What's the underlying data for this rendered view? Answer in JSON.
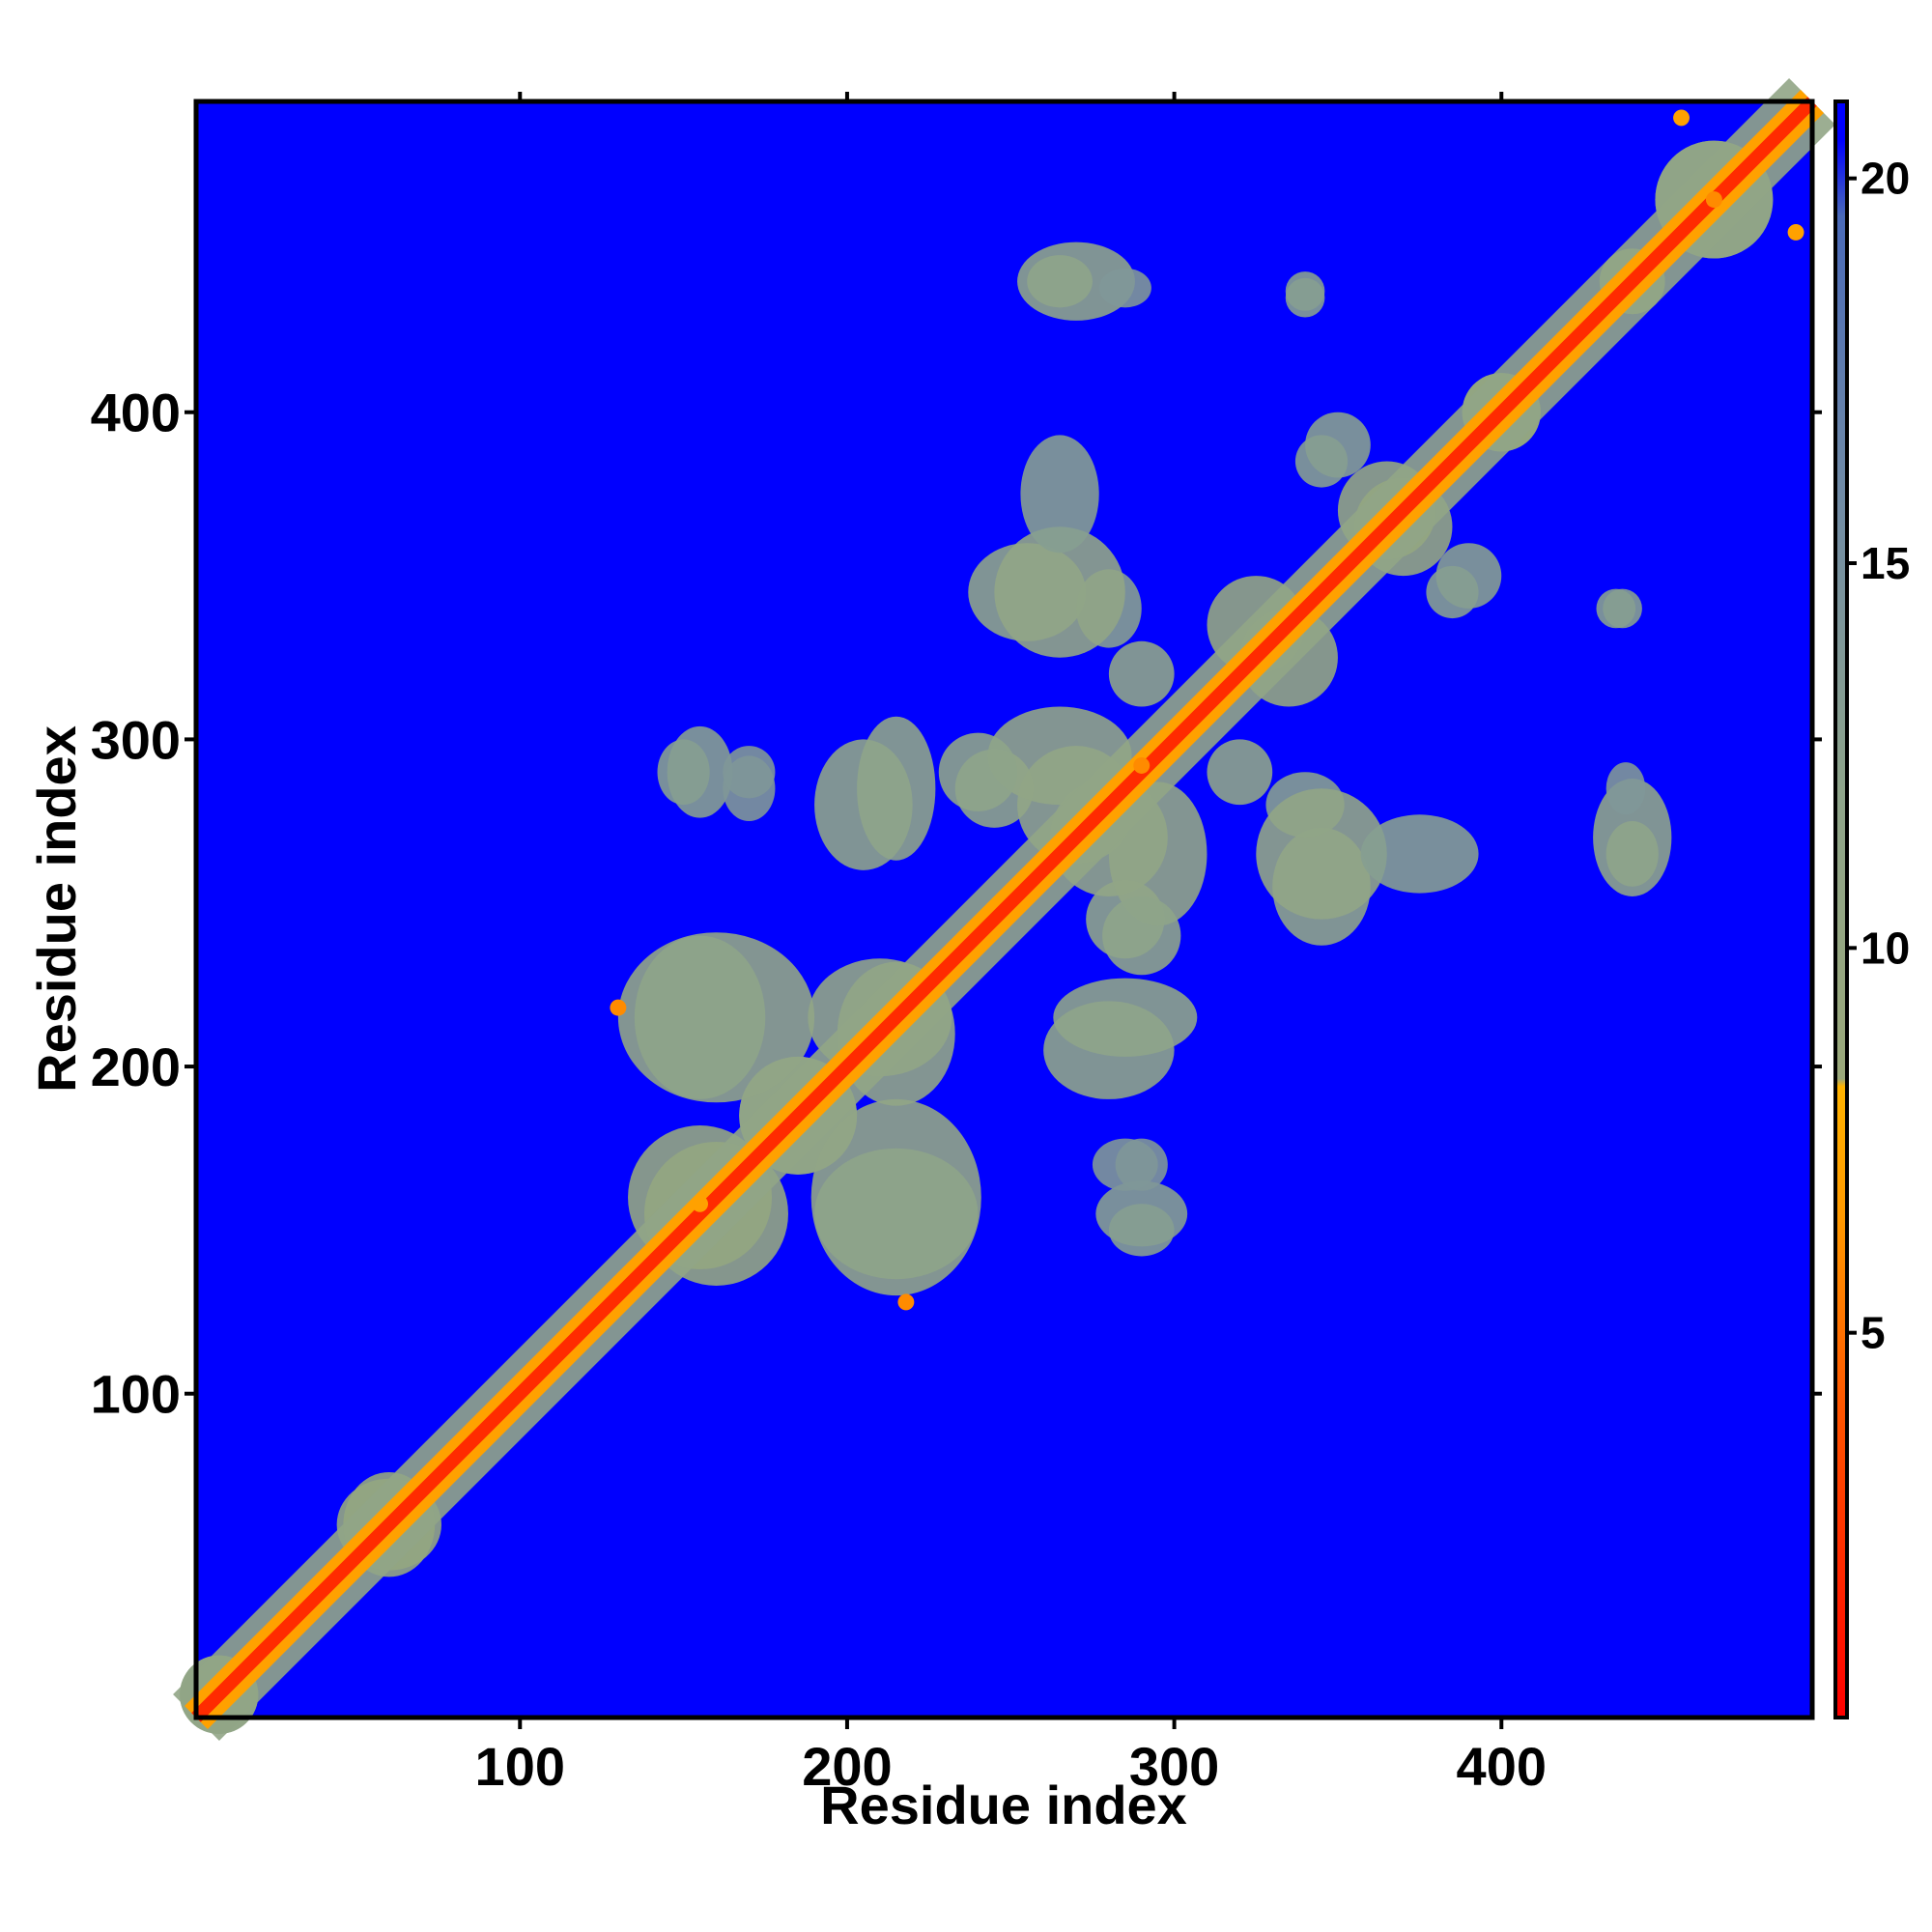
{
  "chart_data": {
    "type": "heatmap",
    "title": "",
    "xlabel": "Residue index",
    "ylabel": "Residue index",
    "xlim": [
      1,
      495
    ],
    "ylim": [
      1,
      495
    ],
    "x_ticks": [
      100,
      200,
      300,
      400
    ],
    "x_tick_labels": [
      "100",
      "200",
      "300",
      "400"
    ],
    "y_ticks": [
      100,
      200,
      300,
      400
    ],
    "y_tick_labels": [
      "100",
      "200",
      "300",
      "400"
    ],
    "colorbar": {
      "range": [
        0,
        21
      ],
      "ticks": [
        5,
        10,
        15,
        20
      ],
      "tick_labels": [
        "5",
        "10",
        "15",
        "20"
      ],
      "stops": [
        {
          "value": 0,
          "color": "#ff0000"
        },
        {
          "value": 4,
          "color": "#ff5500"
        },
        {
          "value": 6.5,
          "color": "#ff9900"
        },
        {
          "value": 8.2,
          "color": "#ffb300"
        },
        {
          "value": 8.3,
          "color": "#9aa87a"
        },
        {
          "value": 12,
          "color": "#8ea48a"
        },
        {
          "value": 16,
          "color": "#6f8aa6"
        },
        {
          "value": 19.5,
          "color": "#4a6ab8"
        },
        {
          "value": 20.5,
          "color": "#0000ff"
        },
        {
          "value": 21,
          "color": "#0000ff"
        }
      ]
    },
    "background_value": 21,
    "diagonal": {
      "contact_value": 2,
      "band_width": 4
    },
    "contact_clusters": [
      {
        "x": 8,
        "y": 8,
        "rx": 12,
        "ry": 12,
        "value": 11
      },
      {
        "x": 60,
        "y": 60,
        "rx": 16,
        "ry": 14,
        "value": 10
      },
      {
        "x": 155,
        "y": 160,
        "rx": 22,
        "ry": 22,
        "value": 10
      },
      {
        "x": 185,
        "y": 185,
        "rx": 18,
        "ry": 18,
        "value": 11
      },
      {
        "x": 215,
        "y": 160,
        "rx": 26,
        "ry": 30,
        "value": 11
      },
      {
        "x": 155,
        "y": 215,
        "rx": 20,
        "ry": 25,
        "value": 12
      },
      {
        "x": 210,
        "y": 215,
        "rx": 22,
        "ry": 18,
        "value": 11
      },
      {
        "x": 285,
        "y": 215,
        "rx": 22,
        "ry": 12,
        "value": 12
      },
      {
        "x": 290,
        "y": 155,
        "rx": 14,
        "ry": 10,
        "value": 13
      },
      {
        "x": 285,
        "y": 170,
        "rx": 10,
        "ry": 8,
        "value": 14
      },
      {
        "x": 150,
        "y": 290,
        "rx": 8,
        "ry": 10,
        "value": 13
      },
      {
        "x": 170,
        "y": 290,
        "rx": 8,
        "ry": 8,
        "value": 14
      },
      {
        "x": 205,
        "y": 280,
        "rx": 15,
        "ry": 20,
        "value": 12
      },
      {
        "x": 245,
        "y": 285,
        "rx": 12,
        "ry": 12,
        "value": 12
      },
      {
        "x": 270,
        "y": 280,
        "rx": 18,
        "ry": 18,
        "value": 11
      },
      {
        "x": 295,
        "y": 265,
        "rx": 15,
        "ry": 22,
        "value": 11
      },
      {
        "x": 290,
        "y": 240,
        "rx": 12,
        "ry": 12,
        "value": 12
      },
      {
        "x": 255,
        "y": 345,
        "rx": 18,
        "ry": 15,
        "value": 12
      },
      {
        "x": 280,
        "y": 340,
        "rx": 10,
        "ry": 12,
        "value": 13
      },
      {
        "x": 325,
        "y": 335,
        "rx": 15,
        "ry": 15,
        "value": 10
      },
      {
        "x": 345,
        "y": 265,
        "rx": 20,
        "ry": 20,
        "value": 11
      },
      {
        "x": 320,
        "y": 290,
        "rx": 10,
        "ry": 10,
        "value": 12
      },
      {
        "x": 375,
        "y": 265,
        "rx": 18,
        "ry": 12,
        "value": 13
      },
      {
        "x": 440,
        "y": 270,
        "rx": 12,
        "ry": 18,
        "value": 12
      },
      {
        "x": 435,
        "y": 340,
        "rx": 6,
        "ry": 6,
        "value": 13
      },
      {
        "x": 385,
        "y": 345,
        "rx": 8,
        "ry": 8,
        "value": 13
      },
      {
        "x": 365,
        "y": 370,
        "rx": 15,
        "ry": 15,
        "value": 10
      },
      {
        "x": 350,
        "y": 390,
        "rx": 10,
        "ry": 10,
        "value": 13
      },
      {
        "x": 265,
        "y": 440,
        "rx": 10,
        "ry": 8,
        "value": 12
      },
      {
        "x": 285,
        "y": 438,
        "rx": 8,
        "ry": 6,
        "value": 14
      },
      {
        "x": 340,
        "y": 437,
        "rx": 6,
        "ry": 6,
        "value": 13
      },
      {
        "x": 465,
        "y": 465,
        "rx": 18,
        "ry": 18,
        "value": 11
      },
      {
        "x": 440,
        "y": 440,
        "rx": 10,
        "ry": 10,
        "value": 11
      },
      {
        "x": 400,
        "y": 400,
        "rx": 12,
        "ry": 12,
        "value": 10
      }
    ],
    "strong_contacts": [
      {
        "x": 130,
        "y": 218,
        "value": 6
      },
      {
        "x": 218,
        "y": 128,
        "value": 6
      },
      {
        "x": 290,
        "y": 292,
        "value": 6
      },
      {
        "x": 155,
        "y": 158,
        "value": 7
      },
      {
        "x": 465,
        "y": 465,
        "value": 6
      },
      {
        "x": 455,
        "y": 490,
        "value": 7
      },
      {
        "x": 490,
        "y": 455,
        "value": 7
      }
    ]
  }
}
